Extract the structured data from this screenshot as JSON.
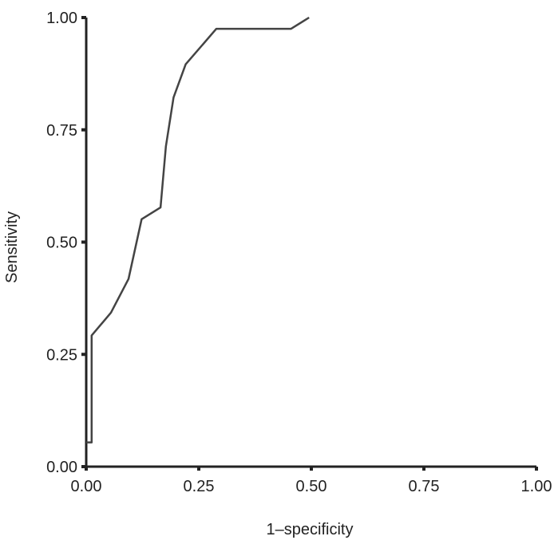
{
  "chart_data": {
    "type": "line",
    "title": "",
    "xlabel": "1–specificity",
    "ylabel": "Sensitivity",
    "xlim": [
      0,
      1
    ],
    "ylim": [
      0,
      1
    ],
    "x_ticks": [
      "0.00",
      "0.25",
      "0.50",
      "0.75",
      "1.00"
    ],
    "y_ticks": [
      "0.00",
      "0.25",
      "0.50",
      "0.75",
      "1.00"
    ],
    "grid": false,
    "line_color": "#444444",
    "series": [
      {
        "x": [
          0.0,
          0.012,
          0.012,
          0.055,
          0.094,
          0.123,
          0.165,
          0.177,
          0.194,
          0.221,
          0.289,
          0.455,
          0.495
        ],
        "y": [
          0.054,
          0.054,
          0.292,
          0.343,
          0.418,
          0.551,
          0.577,
          0.713,
          0.822,
          0.896,
          0.975,
          0.975,
          1.0
        ]
      }
    ]
  }
}
